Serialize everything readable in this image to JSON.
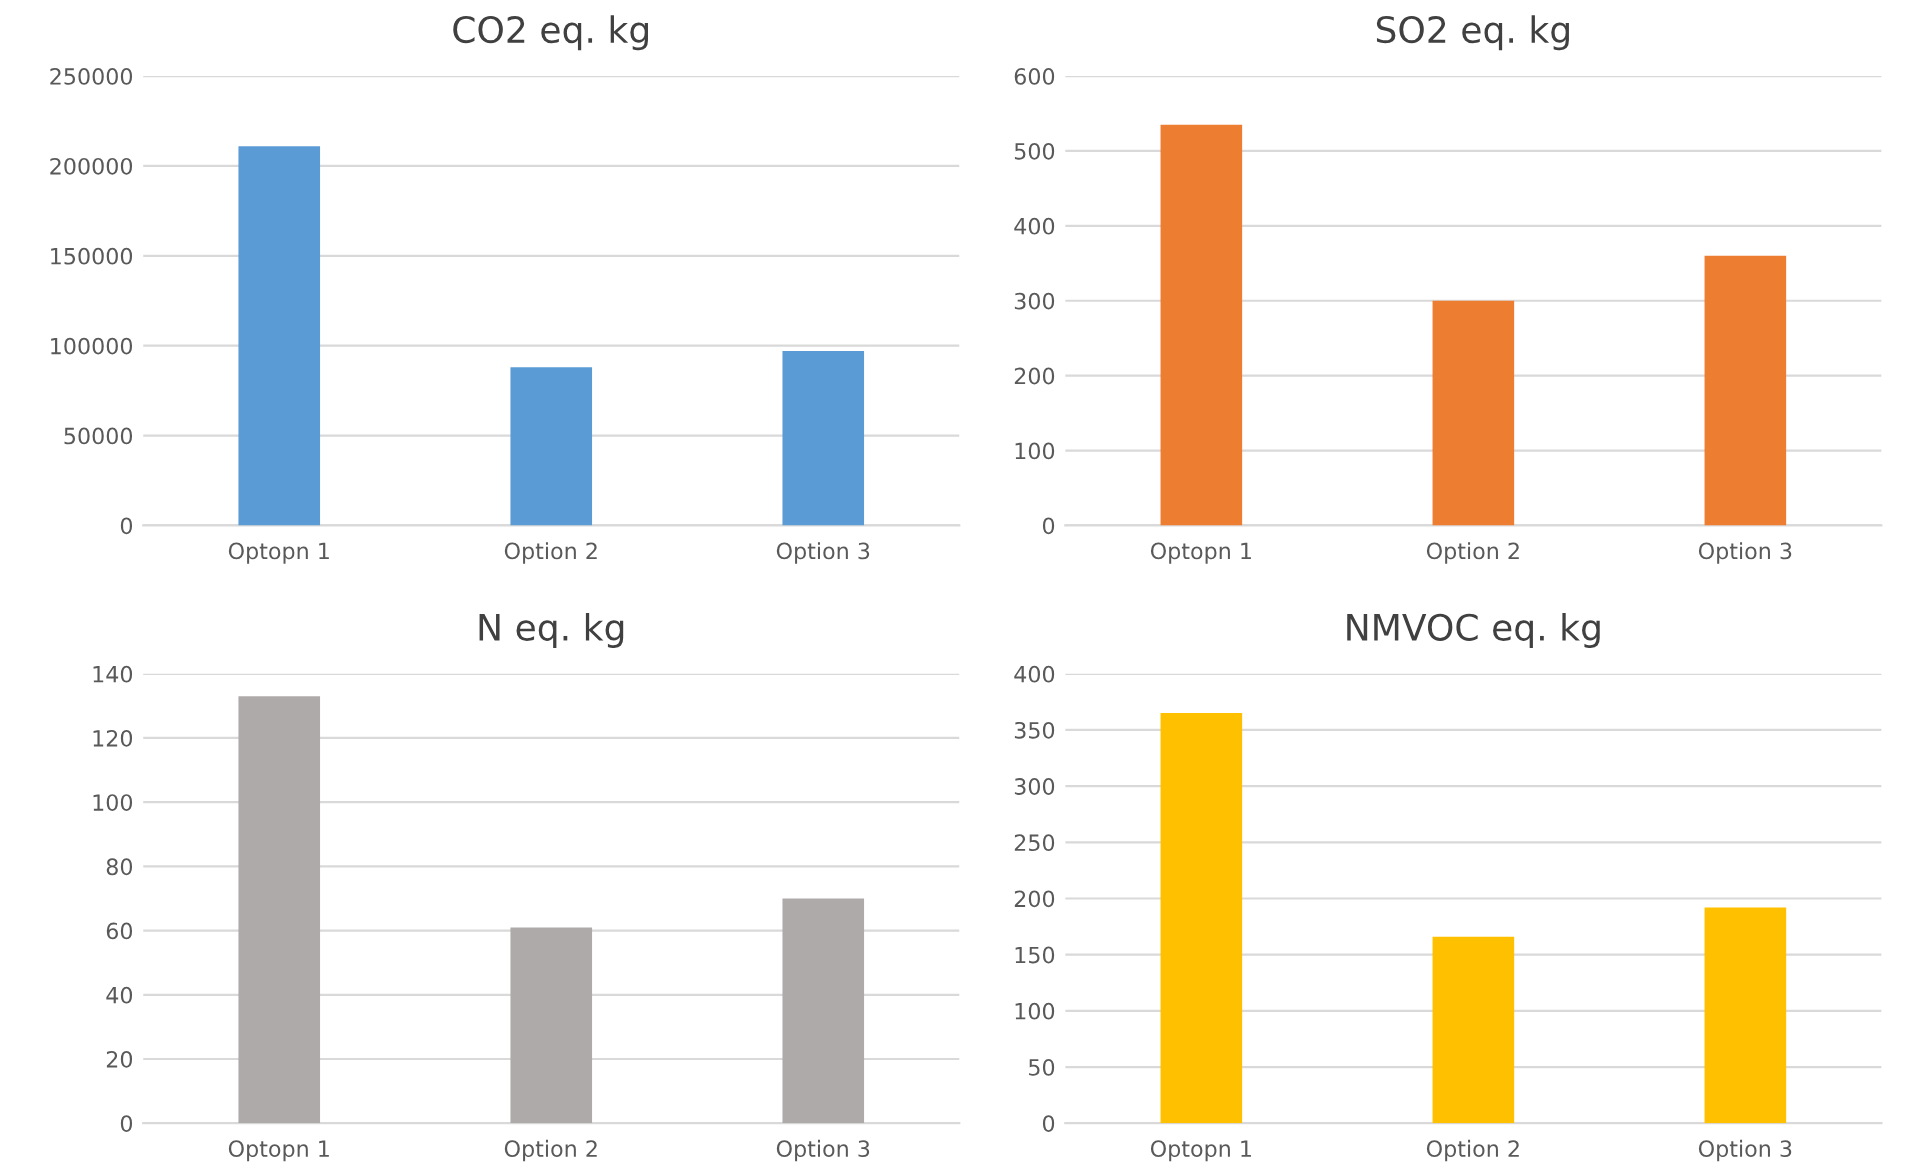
{
  "chart_data": [
    {
      "type": "bar",
      "title": "CO2 eq. kg",
      "categories": [
        "Optopn 1",
        "Option 2",
        "Option 3"
      ],
      "values": [
        211000,
        88000,
        97000
      ],
      "color": "#5b9bd5",
      "ylim": [
        0,
        250000
      ],
      "yticks": [
        0,
        50000,
        100000,
        150000,
        200000,
        250000
      ],
      "grid": "y"
    },
    {
      "type": "bar",
      "title": "SO2 eq. kg",
      "categories": [
        "Optopn 1",
        "Option 2",
        "Option 3"
      ],
      "values": [
        535,
        300,
        360
      ],
      "color": "#ed7d31",
      "ylim": [
        0,
        600
      ],
      "yticks": [
        0,
        100,
        200,
        300,
        400,
        500,
        600
      ],
      "grid": "y"
    },
    {
      "type": "bar",
      "title": "N eq. kg",
      "categories": [
        "Optopn 1",
        "Option 2",
        "Option 3"
      ],
      "values": [
        133,
        61,
        70
      ],
      "color": "#aeaaaa",
      "ylim": [
        0,
        140
      ],
      "yticks": [
        0,
        20,
        40,
        60,
        80,
        100,
        120,
        140
      ],
      "grid": "y"
    },
    {
      "type": "bar",
      "title": "NMVOC eq. kg",
      "categories": [
        "Optopn 1",
        "Option 2",
        "Option 3"
      ],
      "values": [
        365,
        166,
        192
      ],
      "color": "#ffc000",
      "ylim": [
        0,
        400
      ],
      "yticks": [
        0,
        50,
        100,
        150,
        200,
        250,
        300,
        350,
        400
      ],
      "grid": "y"
    }
  ]
}
